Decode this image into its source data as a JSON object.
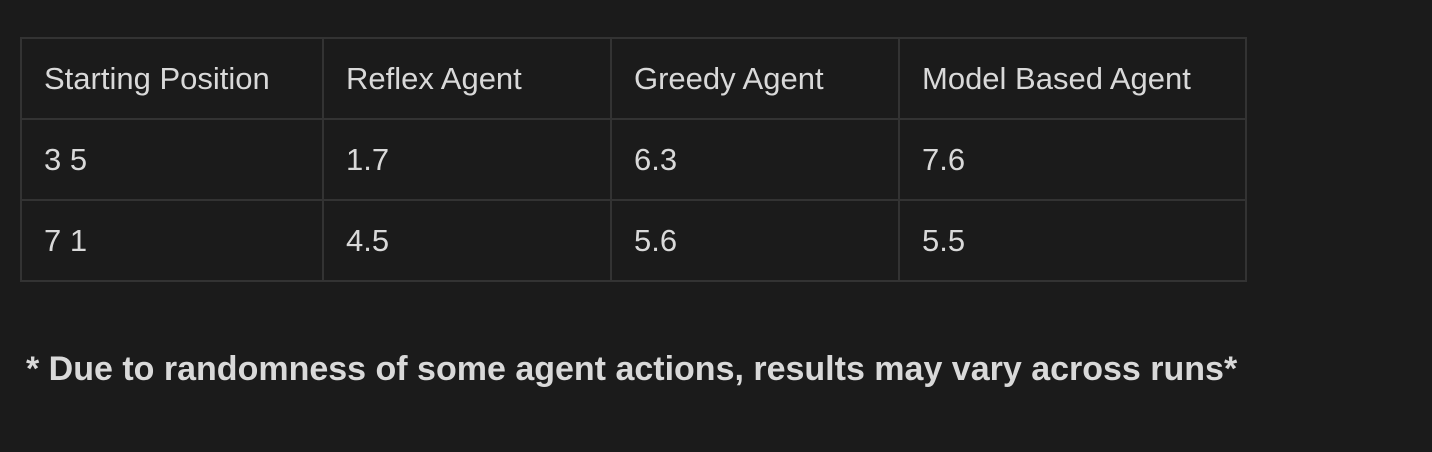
{
  "table": {
    "headers": [
      "Starting Position",
      "Reflex Agent",
      "Greedy Agent",
      "Model Based Agent"
    ],
    "rows": [
      [
        "3 5",
        "1.7",
        "6.3",
        "7.6"
      ],
      [
        "7 1",
        "4.5",
        "5.6",
        "5.5"
      ]
    ]
  },
  "footnote": "* Due to randomness of some agent actions, results may vary across runs*"
}
